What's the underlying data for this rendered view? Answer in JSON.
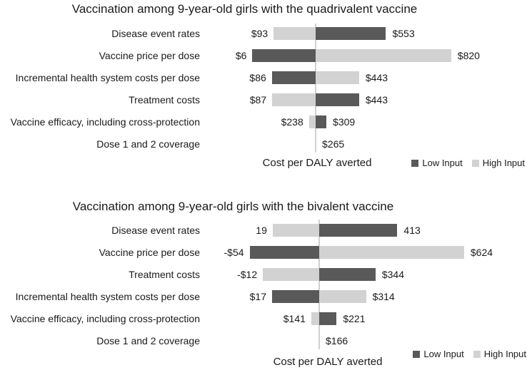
{
  "colors": {
    "low_input": "#595959",
    "high_input": "#d2d2d2",
    "axis_line": "#d0d0d0",
    "text": "#1a1a1a"
  },
  "chart_data": [
    {
      "type": "bar",
      "subtype": "tornado",
      "orientation": "horizontal",
      "title": "Vaccination among 9-year-old girls with the quadrivalent vaccine",
      "xlabel": "Cost per DALY averted",
      "legend": [
        "Low Input",
        "High Input"
      ],
      "legend_position": "bottom-right",
      "base_value": 265,
      "base_label": "$265",
      "rows": [
        {
          "label": "Disease event rates",
          "left_value": 93,
          "left_label": "$93",
          "left_series": "high",
          "right_value": 553,
          "right_label": "$553",
          "right_series": "low"
        },
        {
          "label": "Vaccine price per dose",
          "left_value": 6,
          "left_label": "$6",
          "left_series": "low",
          "right_value": 820,
          "right_label": "$820",
          "right_series": "high"
        },
        {
          "label": "Incremental health system costs per dose",
          "left_value": 86,
          "left_label": "$86",
          "left_series": "low",
          "right_value": 443,
          "right_label": "$443",
          "right_series": "high"
        },
        {
          "label": "Treatment costs",
          "left_value": 87,
          "left_label": "$87",
          "left_series": "high",
          "right_value": 443,
          "right_label": "$443",
          "right_series": "low"
        },
        {
          "label": "Vaccine efficacy, including cross-protection",
          "left_value": 238,
          "left_label": "$238",
          "left_series": "high",
          "right_value": 309,
          "right_label": "$309",
          "right_series": "low"
        },
        {
          "label": "Dose 1 and 2 coverage",
          "base_only": true,
          "base_value": 265,
          "base_label": "$265"
        }
      ]
    },
    {
      "type": "bar",
      "subtype": "tornado",
      "orientation": "horizontal",
      "title": "Vaccination among 9-year-old girls with the bivalent vaccine",
      "xlabel": "Cost per DALY averted",
      "legend": [
        "Low Input",
        "High Input"
      ],
      "legend_position": "bottom-right",
      "base_value": 166,
      "base_label": "$166",
      "rows": [
        {
          "label": "Disease event rates",
          "left_value": 19,
          "left_label": "19",
          "left_series": "high",
          "right_value": 413,
          "right_label": "413",
          "right_series": "low"
        },
        {
          "label": "Vaccine price per dose",
          "left_value": -54,
          "left_label": "-$54",
          "left_series": "low",
          "right_value": 624,
          "right_label": "$624",
          "right_series": "high"
        },
        {
          "label": "Treatment costs",
          "left_value": -12,
          "left_label": "-$12",
          "left_series": "high",
          "right_value": 344,
          "right_label": "$344",
          "right_series": "low"
        },
        {
          "label": "Incremental health system costs per dose",
          "left_value": 17,
          "left_label": "$17",
          "left_series": "low",
          "right_value": 314,
          "right_label": "$314",
          "right_series": "high"
        },
        {
          "label": "Vaccine efficacy, including cross-protection",
          "left_value": 141,
          "left_label": "$141",
          "left_series": "high",
          "right_value": 221,
          "right_label": "$221",
          "right_series": "low"
        },
        {
          "label": "Dose 1 and 2 coverage",
          "base_only": true,
          "base_value": 166,
          "base_label": "$166"
        }
      ]
    }
  ]
}
